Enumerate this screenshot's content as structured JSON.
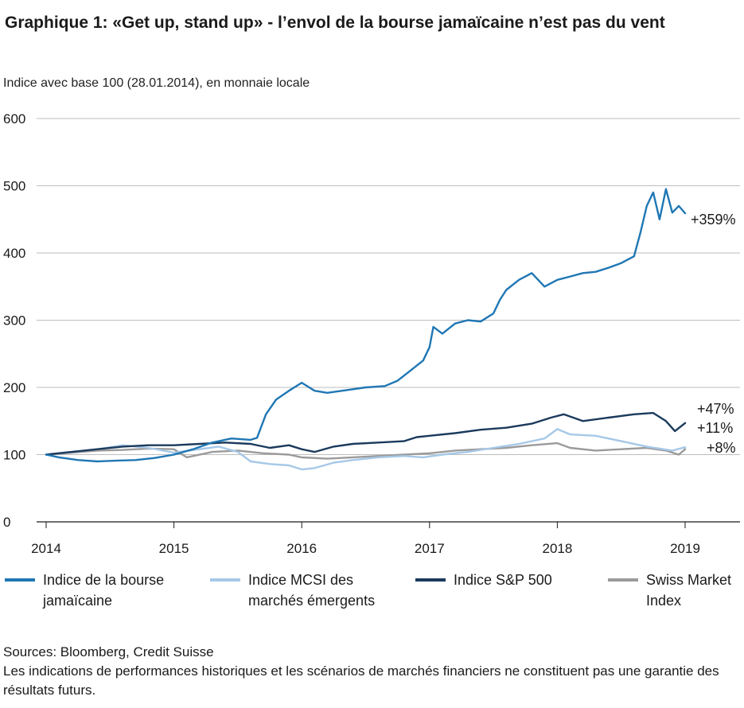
{
  "header": {
    "title": "Graphique 1: «Get up, stand up» - l’envol de la bourse jamaïcaine n’est pas du vent",
    "subtitle": "Indice avec base 100 (28.01.2014), en monnaie locale"
  },
  "chart_data": {
    "type": "line",
    "title": "Graphique 1: «Get up, stand up» - l’envol de la bourse jamaïcaine n’est pas du vent",
    "subtitle": "Indice avec base 100 (28.01.2014), en monnaie locale",
    "xlabel": "",
    "ylabel": "",
    "xlim": [
      2014,
      2019.45
    ],
    "ylim": [
      0,
      600
    ],
    "yticks": [
      0,
      100,
      200,
      300,
      400,
      500,
      600
    ],
    "xticks": [
      "2014",
      "2015",
      "2016",
      "2017",
      "2018",
      "2019"
    ],
    "grid": "horizontal",
    "legend_position": "bottom",
    "series": [
      {
        "name": "Indice de la bourse jamaïcaine",
        "color": "#1f77b4",
        "end_label": "+359%",
        "x": [
          2014.0,
          2014.1,
          2014.25,
          2014.4,
          2014.55,
          2014.7,
          2014.85,
          2015.0,
          2015.15,
          2015.3,
          2015.45,
          2015.6,
          2015.65,
          2015.72,
          2015.8,
          2015.9,
          2016.0,
          2016.1,
          2016.2,
          2016.35,
          2016.5,
          2016.65,
          2016.75,
          2016.85,
          2016.95,
          2017.0,
          2017.03,
          2017.1,
          2017.2,
          2017.3,
          2017.4,
          2017.5,
          2017.55,
          2017.6,
          2017.7,
          2017.8,
          2017.9,
          2018.0,
          2018.1,
          2018.2,
          2018.3,
          2018.4,
          2018.5,
          2018.6,
          2018.65,
          2018.7,
          2018.75,
          2018.8,
          2018.85,
          2018.9,
          2018.95,
          2019.0
        ],
        "values": [
          100,
          96,
          92,
          90,
          91,
          92,
          95,
          100,
          108,
          118,
          124,
          122,
          125,
          160,
          182,
          195,
          207,
          195,
          192,
          196,
          200,
          202,
          210,
          225,
          240,
          260,
          290,
          280,
          295,
          300,
          298,
          310,
          330,
          345,
          360,
          370,
          350,
          360,
          365,
          370,
          372,
          378,
          385,
          395,
          430,
          470,
          490,
          450,
          495,
          460,
          470,
          459
        ]
      },
      {
        "name": "Indice MCSI des marchés émergents",
        "color": "#a6c8e8",
        "end_label": "+11%",
        "x": [
          2014.0,
          2014.2,
          2014.4,
          2014.6,
          2014.8,
          2015.0,
          2015.2,
          2015.35,
          2015.5,
          2015.6,
          2015.75,
          2015.9,
          2016.0,
          2016.1,
          2016.25,
          2016.4,
          2016.6,
          2016.8,
          2016.95,
          2017.1,
          2017.3,
          2017.5,
          2017.7,
          2017.9,
          2018.0,
          2018.1,
          2018.3,
          2018.5,
          2018.7,
          2018.9,
          2019.0
        ],
        "values": [
          100,
          104,
          108,
          114,
          110,
          103,
          108,
          112,
          104,
          90,
          86,
          84,
          78,
          80,
          88,
          92,
          96,
          98,
          96,
          100,
          104,
          110,
          116,
          124,
          138,
          130,
          128,
          120,
          112,
          106,
          111
        ]
      },
      {
        "name": "Indice S&P 500",
        "color": "#1b3a5c",
        "end_label": "+47%",
        "x": [
          2014.0,
          2014.2,
          2014.4,
          2014.6,
          2014.8,
          2015.0,
          2015.2,
          2015.4,
          2015.6,
          2015.75,
          2015.9,
          2016.0,
          2016.1,
          2016.25,
          2016.4,
          2016.6,
          2016.8,
          2016.9,
          2017.0,
          2017.2,
          2017.4,
          2017.6,
          2017.8,
          2017.95,
          2018.05,
          2018.2,
          2018.4,
          2018.6,
          2018.75,
          2018.85,
          2018.92,
          2019.0
        ],
        "values": [
          100,
          104,
          108,
          112,
          114,
          114,
          116,
          118,
          116,
          110,
          114,
          108,
          104,
          112,
          116,
          118,
          120,
          126,
          128,
          132,
          137,
          140,
          146,
          155,
          160,
          150,
          155,
          160,
          162,
          150,
          135,
          147
        ]
      },
      {
        "name": "Swiss Market Index",
        "color": "#9b9b9b",
        "end_label": "+8%",
        "x": [
          2014.0,
          2014.2,
          2014.4,
          2014.6,
          2014.8,
          2015.0,
          2015.1,
          2015.3,
          2015.5,
          2015.7,
          2015.9,
          2016.0,
          2016.2,
          2016.4,
          2016.6,
          2016.8,
          2017.0,
          2017.2,
          2017.4,
          2017.6,
          2017.8,
          2018.0,
          2018.1,
          2018.3,
          2018.5,
          2018.7,
          2018.85,
          2018.95,
          2019.0
        ],
        "values": [
          100,
          103,
          106,
          107,
          109,
          108,
          96,
          104,
          106,
          102,
          100,
          96,
          94,
          96,
          98,
          100,
          102,
          106,
          108,
          110,
          114,
          117,
          110,
          106,
          108,
          110,
          106,
          100,
          108
        ]
      }
    ],
    "legend": [
      {
        "label": "Indice de la bourse jamaïcaine",
        "color": "#1f77b4"
      },
      {
        "label": "Indice MCSI des marchés émergents",
        "color": "#a6c8e8"
      },
      {
        "label": "Indice S&P 500",
        "color": "#1b3a5c"
      },
      {
        "label": "Swiss Market Index",
        "color": "#9b9b9b"
      }
    ]
  },
  "legend": {
    "items": [
      {
        "label_line1": "Indice de la bourse",
        "label_line2": "jamaïcaine"
      },
      {
        "label_line1": "Indice MCSI des",
        "label_line2": "marchés émergents"
      },
      {
        "label_line1": "Indice S&P 500",
        "label_line2": ""
      },
      {
        "label_line1": "Swiss Market",
        "label_line2": "Index"
      }
    ]
  },
  "footer": {
    "sources": "Sources: Bloomberg, Credit Suisse",
    "disclaimer": "Les indications de performances historiques et les scénarios de marchés financiers ne constituent pas une garantie des résultats futurs."
  }
}
